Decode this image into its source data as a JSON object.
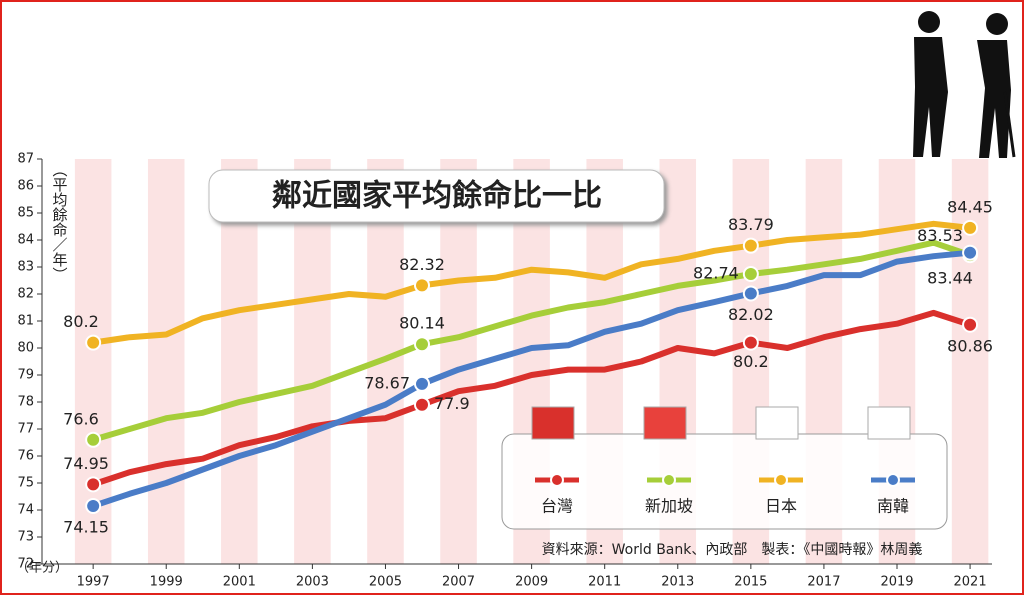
{
  "chart_data": {
    "type": "line",
    "title": "鄰近國家平均餘命比一比",
    "y_label": "（平均餘命／年）",
    "x_label": "（年分）",
    "source": "資料來源：World Bank、內政部　製表：《中國時報》林周義",
    "x": [
      1997,
      1998,
      1999,
      2000,
      2001,
      2002,
      2003,
      2004,
      2005,
      2006,
      2007,
      2008,
      2009,
      2010,
      2011,
      2012,
      2013,
      2014,
      2015,
      2016,
      2017,
      2018,
      2019,
      2020,
      2021
    ],
    "xlim": [
      1995.6,
      2021.6
    ],
    "xticks": [
      1997,
      1999,
      2001,
      2003,
      2005,
      2007,
      2009,
      2011,
      2013,
      2015,
      2017,
      2019,
      2021
    ],
    "ylim": [
      72,
      87
    ],
    "yticks": [
      72,
      73,
      74,
      75,
      76,
      77,
      78,
      79,
      80,
      81,
      82,
      83,
      84,
      85,
      86,
      87
    ],
    "series": [
      {
        "name": "台灣",
        "color": "#d9302c",
        "values": [
          74.95,
          75.4,
          75.7,
          75.9,
          76.4,
          76.7,
          77.1,
          77.3,
          77.4,
          77.9,
          78.4,
          78.6,
          79.0,
          79.2,
          79.2,
          79.5,
          80.0,
          79.8,
          80.2,
          80.0,
          80.4,
          80.7,
          80.9,
          81.3,
          80.86
        ]
      },
      {
        "name": "新加坡",
        "color": "#a6ce39",
        "values": [
          76.6,
          77.0,
          77.4,
          77.6,
          78.0,
          78.3,
          78.6,
          79.1,
          79.6,
          80.14,
          80.4,
          80.8,
          81.2,
          81.5,
          81.7,
          82.0,
          82.3,
          82.5,
          82.74,
          82.9,
          83.1,
          83.3,
          83.6,
          83.9,
          83.44
        ]
      },
      {
        "name": "日本",
        "color": "#f0b323",
        "values": [
          80.2,
          80.4,
          80.5,
          81.1,
          81.4,
          81.6,
          81.8,
          82.0,
          81.9,
          82.32,
          82.5,
          82.6,
          82.9,
          82.8,
          82.6,
          83.1,
          83.3,
          83.6,
          83.79,
          84.0,
          84.1,
          84.2,
          84.4,
          84.6,
          84.45
        ]
      },
      {
        "name": "南韓",
        "color": "#4a7cc7",
        "values": [
          74.15,
          74.6,
          75.0,
          75.5,
          76.0,
          76.4,
          76.9,
          77.4,
          77.9,
          78.67,
          79.2,
          79.6,
          80.0,
          80.1,
          80.6,
          80.9,
          81.4,
          81.7,
          82.02,
          82.3,
          82.7,
          82.7,
          83.2,
          83.4,
          83.53
        ]
      }
    ]
  }
}
